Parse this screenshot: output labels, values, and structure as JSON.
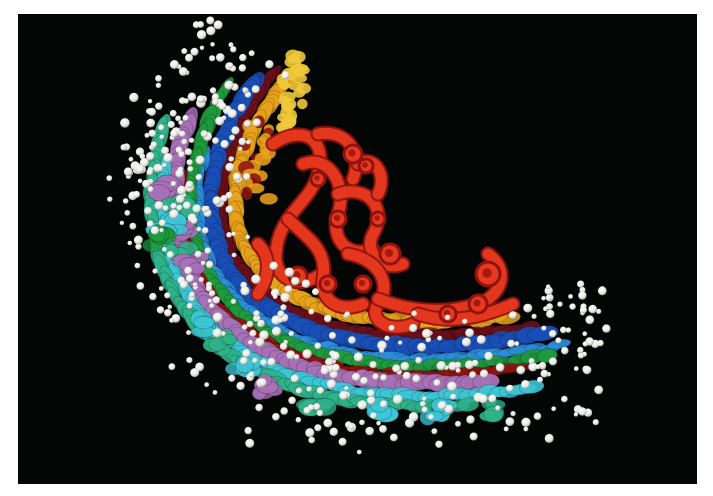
{
  "image": {
    "kind": "3D cellular rendering",
    "background": "#040606",
    "frame_color": "#ffffff"
  },
  "palette": {
    "red": "#e8391f",
    "dark_red": "#8f1410",
    "orange_gold": "#e8a21c",
    "yellow": "#f0c83a",
    "blue": "#1a4fb8",
    "light_blue": "#2c8fd9",
    "green": "#1f9a3d",
    "teal": "#2fb38a",
    "cyan": "#3ec6d6",
    "purple": "#a871b8",
    "maroon": "#6b0f1a",
    "white_cells": "#f4f4f0"
  }
}
